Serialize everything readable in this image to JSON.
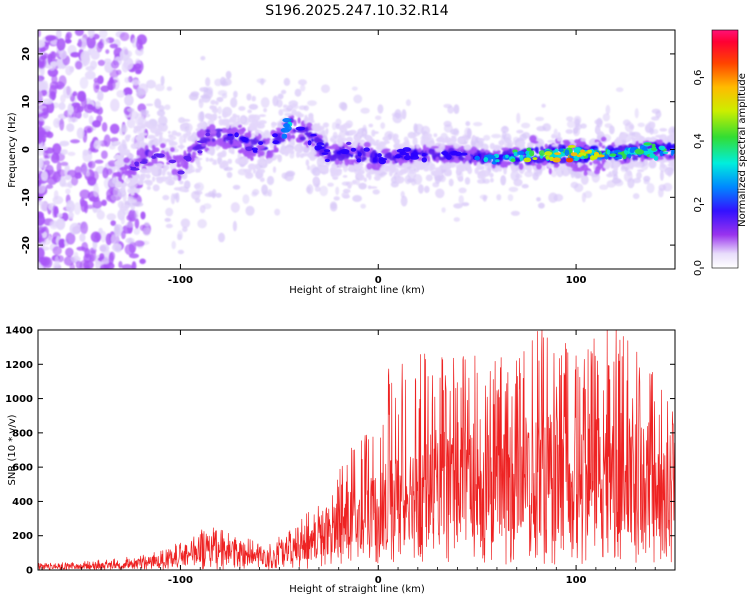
{
  "title": "S196.2025.247.10.32.R14",
  "chart_data": [
    {
      "type": "heatmap",
      "name": "spectrogram",
      "xlabel": "Height of straight line (km)",
      "ylabel": "Frequency (Hz)",
      "xlim": [
        -172,
        150
      ],
      "ylim": [
        -25,
        25
      ],
      "xticks": [
        -100,
        0,
        100
      ],
      "xtick_labels": [
        "-100",
        "0",
        "100"
      ],
      "yticks": [
        -20,
        -10,
        0,
        10,
        20
      ],
      "ytick_labels": [
        "-20",
        "-10",
        "0",
        "10",
        "20"
      ],
      "colorbar": {
        "label": "Normalized spectral amplitude",
        "range": [
          0.0,
          0.75
        ],
        "ticks": [
          0.0,
          0.2,
          0.4,
          0.6
        ],
        "tick_labels": [
          "0.0",
          "0.2",
          "0.4",
          "0.6"
        ]
      },
      "ridge": {
        "x": [
          -130,
          -115,
          -100,
          -85,
          -70,
          -55,
          -45,
          -35,
          -25,
          -10,
          0,
          20,
          40,
          60,
          80,
          100,
          120,
          140,
          150
        ],
        "center_hz": [
          -5,
          -1,
          -3,
          3,
          2,
          0,
          5,
          3,
          -1,
          -1,
          -2,
          -1,
          -1,
          -2,
          -1,
          -1,
          -1,
          0,
          0
        ],
        "peak_amplitude": [
          0.2,
          0.22,
          0.25,
          0.25,
          0.3,
          0.3,
          0.4,
          0.32,
          0.32,
          0.3,
          0.32,
          0.32,
          0.32,
          0.42,
          0.6,
          0.68,
          0.55,
          0.5,
          0.5
        ]
      }
    },
    {
      "type": "line",
      "name": "snr",
      "xlabel": "Height of straight line (km)",
      "ylabel": "SNR (10 * v/v)",
      "xlim": [
        -172,
        150
      ],
      "ylim": [
        0,
        1400
      ],
      "xticks": [
        -100,
        0,
        100
      ],
      "xtick_labels": [
        "-100",
        "0",
        "100"
      ],
      "yticks": [
        0,
        200,
        400,
        600,
        800,
        1000,
        1200,
        1400
      ],
      "ytick_labels": [
        "0",
        "200",
        "400",
        "600",
        "800",
        "1000",
        "1200",
        "1400"
      ],
      "color": "#ee2222",
      "envelope": {
        "x": [
          -172,
          -150,
          -130,
          -110,
          -95,
          -85,
          -70,
          -55,
          -45,
          -35,
          -25,
          -15,
          -5,
          5,
          20,
          40,
          60,
          80,
          100,
          120,
          140,
          150
        ],
        "mean": [
          20,
          25,
          30,
          60,
          110,
          120,
          100,
          80,
          120,
          180,
          260,
          320,
          350,
          420,
          520,
          580,
          600,
          620,
          600,
          620,
          580,
          600
        ],
        "max": [
          40,
          50,
          70,
          110,
          200,
          260,
          190,
          160,
          230,
          350,
          500,
          690,
          850,
          1200,
          1280,
          1310,
          1220,
          1430,
          1300,
          1430,
          1150,
          1050
        ]
      }
    }
  ]
}
